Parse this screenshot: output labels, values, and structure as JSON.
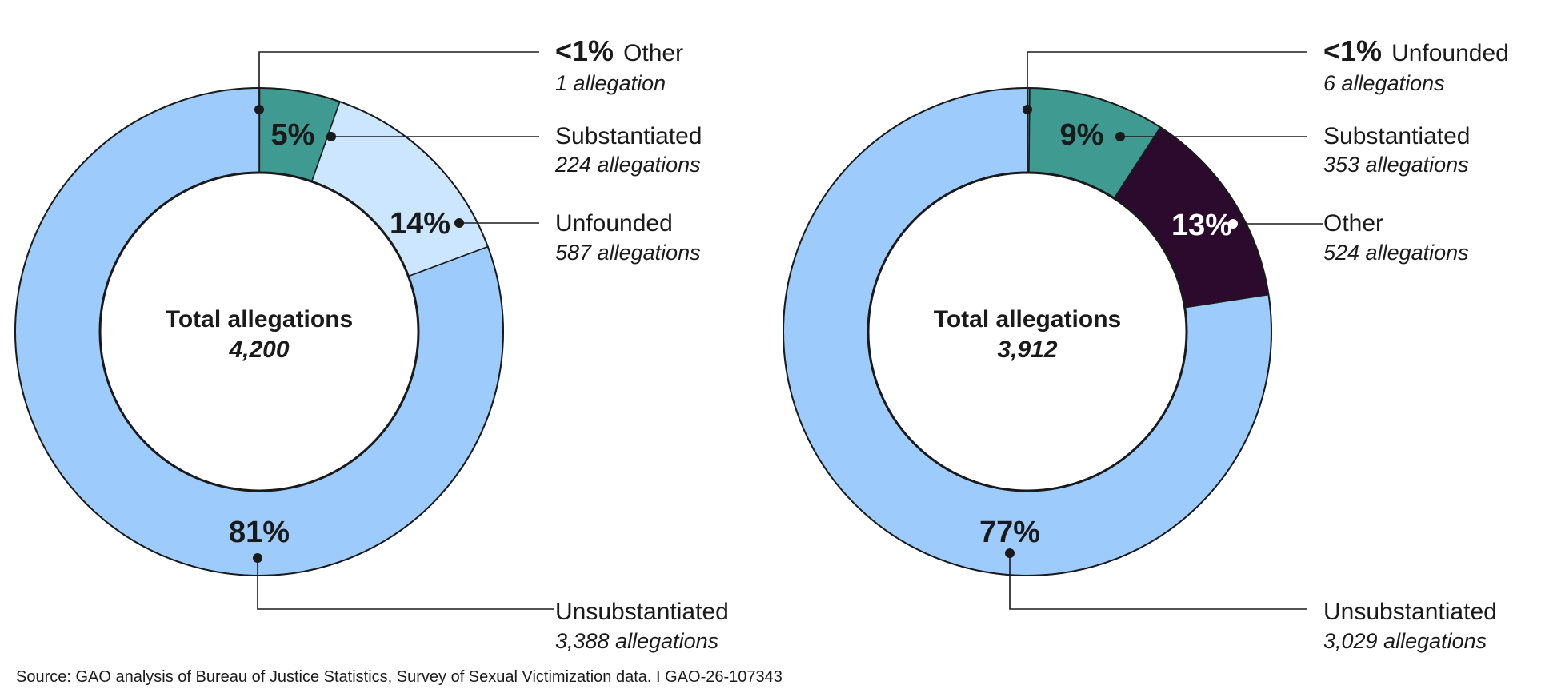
{
  "chart_data": [
    {
      "type": "pie",
      "center_label": "Total allegations",
      "total": "4,200",
      "slices": [
        {
          "name": "Other",
          "pct_label": "<1%",
          "value": 1,
          "count_label": "1 allegation",
          "color": "#2e8a82"
        },
        {
          "name": "Substantiated",
          "pct_label": "5%",
          "value": 224,
          "count_label": "224 allegations",
          "color": "#3f9a92"
        },
        {
          "name": "Unfounded",
          "pct_label": "14%",
          "value": 587,
          "count_label": "587 allegations",
          "color": "#cce6ff"
        },
        {
          "name": "Unsubstantiated",
          "pct_label": "81%",
          "value": 3388,
          "count_label": "3,388 allegations",
          "color": "#9ccbfc"
        }
      ]
    },
    {
      "type": "pie",
      "center_label": "Total allegations",
      "total": "3,912",
      "slices": [
        {
          "name": "Unfounded",
          "pct_label": "<1%",
          "value": 6,
          "count_label": "6 allegations",
          "color": "#2e8a82"
        },
        {
          "name": "Substantiated",
          "pct_label": "9%",
          "value": 353,
          "count_label": "353 allegations",
          "color": "#3f9a92"
        },
        {
          "name": "Other",
          "pct_label": "13%",
          "value": 524,
          "count_label": "524 allegations",
          "color": "#2b0a2e"
        },
        {
          "name": "Unsubstantiated",
          "pct_label": "77%",
          "value": 3029,
          "count_label": "3,029 allegations",
          "color": "#9ccbfc"
        }
      ]
    }
  ],
  "source": "Source: GAO analysis of Bureau of Justice Statistics, Survey of Sexual Victimization data.  I  GAO-26-107343"
}
